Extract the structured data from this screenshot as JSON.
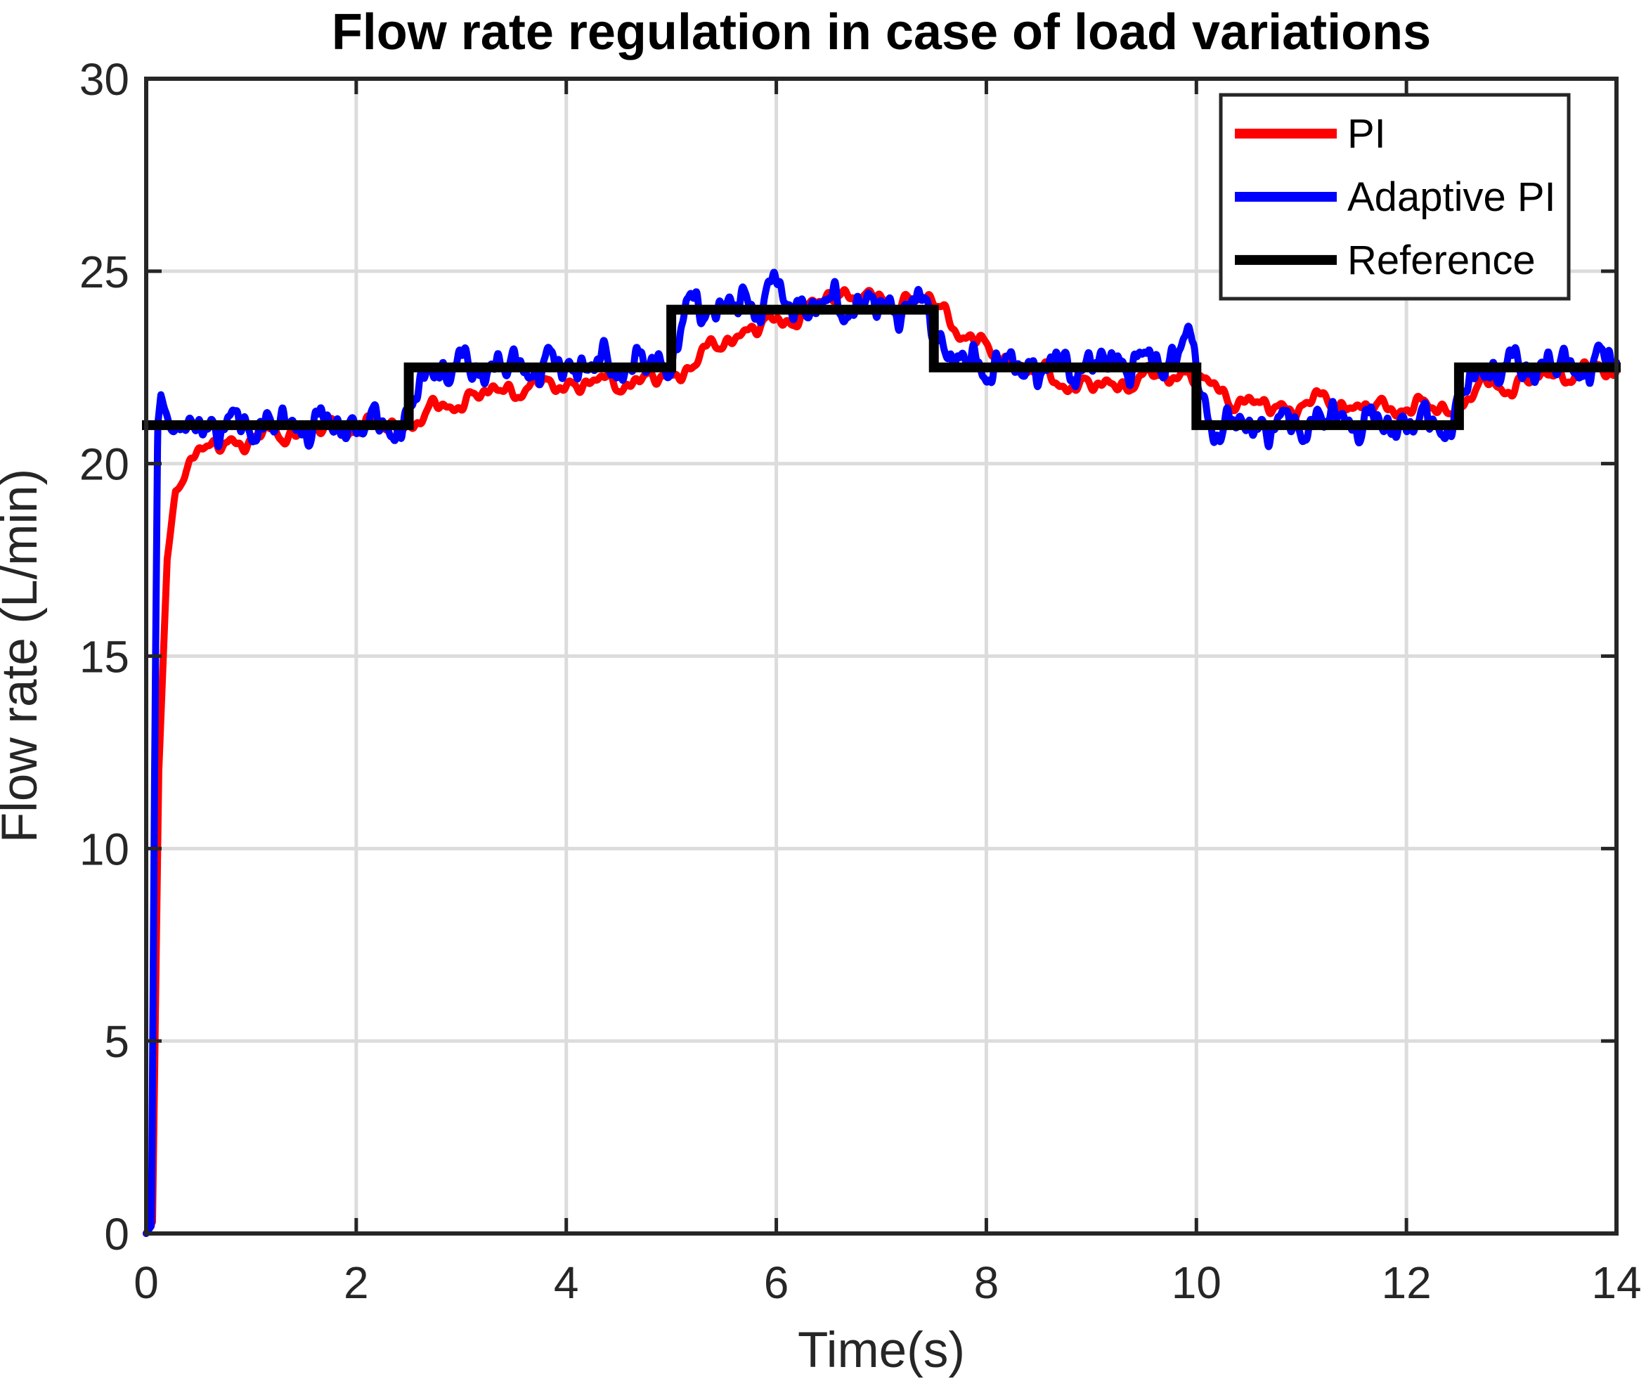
{
  "title": "Flow rate regulation in case of load variations",
  "axes": {
    "xlabel": "Time(s)",
    "ylabel": "Flow rate (L/min)",
    "xlim": [
      0,
      14
    ],
    "ylim": [
      0,
      30
    ],
    "xticks": [
      0,
      2,
      4,
      6,
      8,
      10,
      12,
      14
    ],
    "yticks": [
      0,
      5,
      10,
      15,
      20,
      25,
      30
    ],
    "grid": true
  },
  "colors": {
    "background": "#ffffff",
    "grid": "#dcdcdc",
    "axis": "#262626",
    "pi": "#ff0000",
    "adaptive_pi": "#0000ff",
    "reference": "#000000"
  },
  "legend": {
    "position": "top-right",
    "items": [
      {
        "label": "PI",
        "color": "#ff0000"
      },
      {
        "label": "Adaptive PI",
        "color": "#0000ff"
      },
      {
        "label": "Reference",
        "color": "#000000"
      }
    ]
  },
  "chart_data": {
    "type": "line",
    "xlabel": "Time(s)",
    "ylabel": "Flow rate (L/min)",
    "xlim": [
      0,
      14
    ],
    "ylim": [
      0,
      30
    ],
    "series": [
      {
        "name": "PI",
        "color": "#ff0000",
        "line_width": 10,
        "style": "noisy-line",
        "noise_amp": 0.28,
        "mean_points": [
          [
            0,
            0
          ],
          [
            0.06,
            0.3
          ],
          [
            0.12,
            12
          ],
          [
            0.2,
            17.5
          ],
          [
            0.28,
            19.3
          ],
          [
            0.38,
            20.0
          ],
          [
            0.55,
            20.35
          ],
          [
            0.8,
            20.55
          ],
          [
            1.1,
            20.7
          ],
          [
            1.5,
            20.85
          ],
          [
            2.0,
            20.95
          ],
          [
            2.5,
            21.0
          ],
          [
            2.65,
            21.25
          ],
          [
            2.9,
            21.55
          ],
          [
            3.2,
            21.8
          ],
          [
            3.5,
            21.95
          ],
          [
            3.9,
            22.05
          ],
          [
            4.3,
            22.1
          ],
          [
            4.7,
            22.15
          ],
          [
            5.0,
            22.25
          ],
          [
            5.3,
            22.8
          ],
          [
            5.6,
            23.35
          ],
          [
            5.9,
            23.6
          ],
          [
            6.2,
            23.85
          ],
          [
            6.5,
            24.3
          ],
          [
            6.65,
            24.45
          ],
          [
            6.8,
            24.35
          ],
          [
            7.0,
            24.15
          ],
          [
            7.25,
            24.3
          ],
          [
            7.45,
            24.25
          ],
          [
            7.6,
            23.9
          ],
          [
            7.8,
            23.35
          ],
          [
            8.0,
            22.95
          ],
          [
            8.25,
            22.6
          ],
          [
            8.5,
            22.35
          ],
          [
            8.8,
            22.05
          ],
          [
            9.1,
            22.0
          ],
          [
            9.4,
            22.15
          ],
          [
            9.7,
            22.3
          ],
          [
            9.95,
            22.35
          ],
          [
            10.15,
            21.95
          ],
          [
            10.45,
            21.6
          ],
          [
            10.7,
            21.45
          ],
          [
            11.0,
            21.5
          ],
          [
            11.2,
            21.65
          ],
          [
            11.45,
            21.5
          ],
          [
            11.7,
            21.4
          ],
          [
            11.95,
            21.5
          ],
          [
            12.2,
            21.45
          ],
          [
            12.45,
            21.4
          ],
          [
            12.6,
            21.8
          ],
          [
            12.8,
            22.05
          ],
          [
            13.0,
            22.0
          ],
          [
            13.2,
            22.2
          ],
          [
            13.5,
            22.35
          ],
          [
            13.75,
            22.4
          ],
          [
            14,
            22.45
          ]
        ],
        "spikes": []
      },
      {
        "name": "Adaptive PI",
        "color": "#0000ff",
        "line_width": 10,
        "style": "noisy-line",
        "noise_amp": 0.4,
        "mean_points": [
          [
            0,
            0
          ],
          [
            0.05,
            0.2
          ],
          [
            0.08,
            12
          ],
          [
            0.11,
            21.0
          ],
          [
            0.14,
            21.8
          ],
          [
            0.2,
            21.3
          ],
          [
            0.28,
            20.7
          ],
          [
            0.38,
            20.9
          ],
          [
            0.5,
            21.0
          ],
          [
            1.0,
            21.0
          ],
          [
            1.5,
            21.0
          ],
          [
            2.0,
            21.0
          ],
          [
            2.5,
            21.0
          ],
          [
            2.56,
            21.7
          ],
          [
            2.64,
            22.3
          ],
          [
            2.75,
            22.45
          ],
          [
            3.0,
            22.5
          ],
          [
            3.5,
            22.5
          ],
          [
            4.0,
            22.55
          ],
          [
            4.5,
            22.55
          ],
          [
            5.0,
            22.6
          ],
          [
            5.06,
            23.3
          ],
          [
            5.14,
            23.95
          ],
          [
            5.25,
            24.05
          ],
          [
            5.6,
            24.1
          ],
          [
            6.0,
            24.15
          ],
          [
            6.5,
            24.1
          ],
          [
            7.0,
            24.1
          ],
          [
            7.45,
            24.05
          ],
          [
            7.55,
            23.3
          ],
          [
            7.65,
            22.75
          ],
          [
            7.8,
            22.6
          ],
          [
            8.0,
            22.55
          ],
          [
            8.5,
            22.5
          ],
          [
            9.0,
            22.55
          ],
          [
            9.3,
            22.7
          ],
          [
            9.6,
            22.6
          ],
          [
            9.85,
            22.8
          ],
          [
            9.95,
            22.9
          ],
          [
            10.05,
            21.6
          ],
          [
            10.15,
            21.05
          ],
          [
            10.3,
            20.95
          ],
          [
            10.6,
            21.0
          ],
          [
            11.0,
            21.0
          ],
          [
            11.35,
            21.2
          ],
          [
            11.7,
            21.0
          ],
          [
            12.0,
            21.05
          ],
          [
            12.45,
            21.05
          ],
          [
            12.52,
            21.6
          ],
          [
            12.6,
            22.2
          ],
          [
            12.72,
            22.45
          ],
          [
            13.0,
            22.5
          ],
          [
            13.3,
            22.55
          ],
          [
            13.6,
            22.5
          ],
          [
            13.85,
            22.6
          ],
          [
            14,
            22.6
          ]
        ],
        "spikes": [
          [
            5.95,
            0.8,
            0.05
          ],
          [
            9.9,
            0.7,
            0.05
          ],
          [
            13.95,
            0.25,
            0.04
          ]
        ]
      },
      {
        "name": "Reference",
        "color": "#000000",
        "line_width": 14,
        "style": "step",
        "step_points": [
          [
            0,
            21
          ],
          [
            2.5,
            22.5
          ],
          [
            5,
            24
          ],
          [
            7.5,
            22.5
          ],
          [
            10,
            21
          ],
          [
            12.5,
            22.5
          ],
          [
            14,
            22.5
          ]
        ]
      }
    ]
  }
}
